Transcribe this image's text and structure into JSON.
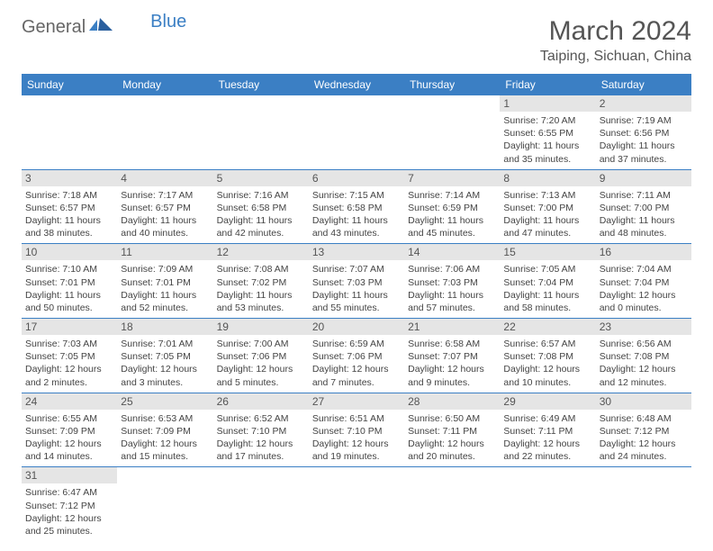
{
  "brand": {
    "part1": "General",
    "part2": "Blue"
  },
  "title": "March 2024",
  "location": "Taiping, Sichuan, China",
  "colors": {
    "header_bg": "#3b7fc4",
    "header_text": "#ffffff",
    "daynum_bg": "#e5e5e5",
    "cell_border": "#3b7fc4",
    "text": "#444444"
  },
  "weekdays": [
    "Sunday",
    "Monday",
    "Tuesday",
    "Wednesday",
    "Thursday",
    "Friday",
    "Saturday"
  ],
  "weeks": [
    [
      null,
      null,
      null,
      null,
      null,
      {
        "n": "1",
        "sr": "7:20 AM",
        "ss": "6:55 PM",
        "dl": "11 hours and 35 minutes."
      },
      {
        "n": "2",
        "sr": "7:19 AM",
        "ss": "6:56 PM",
        "dl": "11 hours and 37 minutes."
      }
    ],
    [
      {
        "n": "3",
        "sr": "7:18 AM",
        "ss": "6:57 PM",
        "dl": "11 hours and 38 minutes."
      },
      {
        "n": "4",
        "sr": "7:17 AM",
        "ss": "6:57 PM",
        "dl": "11 hours and 40 minutes."
      },
      {
        "n": "5",
        "sr": "7:16 AM",
        "ss": "6:58 PM",
        "dl": "11 hours and 42 minutes."
      },
      {
        "n": "6",
        "sr": "7:15 AM",
        "ss": "6:58 PM",
        "dl": "11 hours and 43 minutes."
      },
      {
        "n": "7",
        "sr": "7:14 AM",
        "ss": "6:59 PM",
        "dl": "11 hours and 45 minutes."
      },
      {
        "n": "8",
        "sr": "7:13 AM",
        "ss": "7:00 PM",
        "dl": "11 hours and 47 minutes."
      },
      {
        "n": "9",
        "sr": "7:11 AM",
        "ss": "7:00 PM",
        "dl": "11 hours and 48 minutes."
      }
    ],
    [
      {
        "n": "10",
        "sr": "7:10 AM",
        "ss": "7:01 PM",
        "dl": "11 hours and 50 minutes."
      },
      {
        "n": "11",
        "sr": "7:09 AM",
        "ss": "7:01 PM",
        "dl": "11 hours and 52 minutes."
      },
      {
        "n": "12",
        "sr": "7:08 AM",
        "ss": "7:02 PM",
        "dl": "11 hours and 53 minutes."
      },
      {
        "n": "13",
        "sr": "7:07 AM",
        "ss": "7:03 PM",
        "dl": "11 hours and 55 minutes."
      },
      {
        "n": "14",
        "sr": "7:06 AM",
        "ss": "7:03 PM",
        "dl": "11 hours and 57 minutes."
      },
      {
        "n": "15",
        "sr": "7:05 AM",
        "ss": "7:04 PM",
        "dl": "11 hours and 58 minutes."
      },
      {
        "n": "16",
        "sr": "7:04 AM",
        "ss": "7:04 PM",
        "dl": "12 hours and 0 minutes."
      }
    ],
    [
      {
        "n": "17",
        "sr": "7:03 AM",
        "ss": "7:05 PM",
        "dl": "12 hours and 2 minutes."
      },
      {
        "n": "18",
        "sr": "7:01 AM",
        "ss": "7:05 PM",
        "dl": "12 hours and 3 minutes."
      },
      {
        "n": "19",
        "sr": "7:00 AM",
        "ss": "7:06 PM",
        "dl": "12 hours and 5 minutes."
      },
      {
        "n": "20",
        "sr": "6:59 AM",
        "ss": "7:06 PM",
        "dl": "12 hours and 7 minutes."
      },
      {
        "n": "21",
        "sr": "6:58 AM",
        "ss": "7:07 PM",
        "dl": "12 hours and 9 minutes."
      },
      {
        "n": "22",
        "sr": "6:57 AM",
        "ss": "7:08 PM",
        "dl": "12 hours and 10 minutes."
      },
      {
        "n": "23",
        "sr": "6:56 AM",
        "ss": "7:08 PM",
        "dl": "12 hours and 12 minutes."
      }
    ],
    [
      {
        "n": "24",
        "sr": "6:55 AM",
        "ss": "7:09 PM",
        "dl": "12 hours and 14 minutes."
      },
      {
        "n": "25",
        "sr": "6:53 AM",
        "ss": "7:09 PM",
        "dl": "12 hours and 15 minutes."
      },
      {
        "n": "26",
        "sr": "6:52 AM",
        "ss": "7:10 PM",
        "dl": "12 hours and 17 minutes."
      },
      {
        "n": "27",
        "sr": "6:51 AM",
        "ss": "7:10 PM",
        "dl": "12 hours and 19 minutes."
      },
      {
        "n": "28",
        "sr": "6:50 AM",
        "ss": "7:11 PM",
        "dl": "12 hours and 20 minutes."
      },
      {
        "n": "29",
        "sr": "6:49 AM",
        "ss": "7:11 PM",
        "dl": "12 hours and 22 minutes."
      },
      {
        "n": "30",
        "sr": "6:48 AM",
        "ss": "7:12 PM",
        "dl": "12 hours and 24 minutes."
      }
    ],
    [
      {
        "n": "31",
        "sr": "6:47 AM",
        "ss": "7:12 PM",
        "dl": "12 hours and 25 minutes."
      },
      null,
      null,
      null,
      null,
      null,
      null
    ]
  ],
  "labels": {
    "sunrise": "Sunrise:",
    "sunset": "Sunset:",
    "daylight": "Daylight:"
  }
}
